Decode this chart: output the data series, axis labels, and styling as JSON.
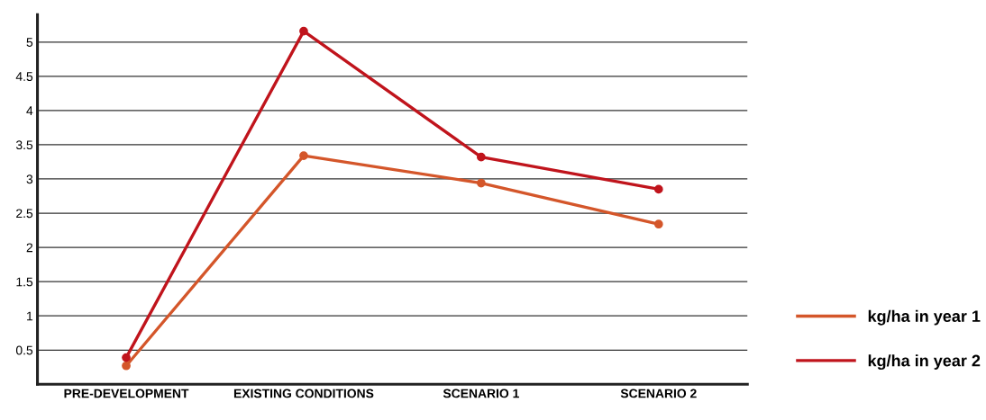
{
  "chart_data": {
    "type": "line",
    "categories": [
      "PRE-DEVELOPMENT",
      "EXISTING CONDITIONS",
      "SCENARIO 1",
      "SCENARIO 2"
    ],
    "series": [
      {
        "name": "kg/ha in year 1",
        "color": "#d4562a",
        "values": [
          0.27,
          3.34,
          2.94,
          2.34
        ]
      },
      {
        "name": "kg/ha in year 2",
        "color": "#c0141c",
        "values": [
          0.39,
          5.16,
          3.32,
          2.85
        ]
      }
    ],
    "ylim": [
      0,
      5.4
    ],
    "yticks": [
      0.5,
      1,
      1.5,
      2,
      2.5,
      3,
      3.5,
      4,
      4.5,
      5
    ],
    "grid": "y",
    "legend": "bottom right",
    "marker": "circle",
    "line_style": "solid"
  }
}
